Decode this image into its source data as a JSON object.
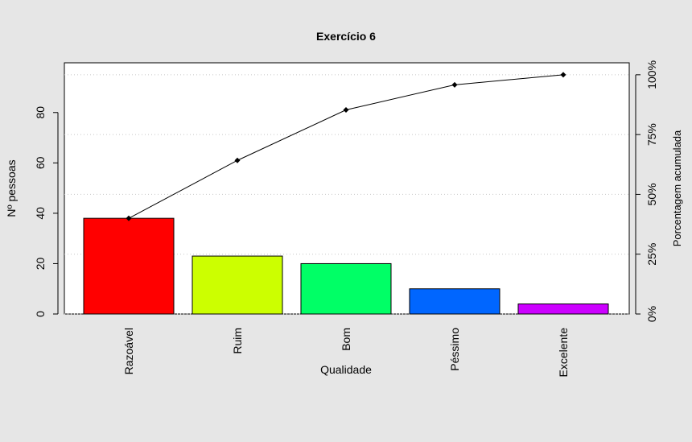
{
  "chart_data": {
    "type": "bar",
    "title": "Exercício 6",
    "xlabel": "Qualidade",
    "ylabel": "Nº pessoas",
    "y2label": "Porcentagem acumulada",
    "categories": [
      "Razoável",
      "Ruim",
      "Bom",
      "Péssimo",
      "Excelente"
    ],
    "values": [
      38,
      23,
      20,
      10,
      4
    ],
    "bar_colors": [
      "#ff0000",
      "#ccff00",
      "#00ff66",
      "#0066ff",
      "#cc00ff"
    ],
    "cumulative_percent": [
      40,
      64.2,
      85.3,
      95.8,
      100
    ],
    "ylim": [
      0,
      99.75
    ],
    "yticks": [
      0,
      20,
      40,
      60,
      80
    ],
    "y2ticks": [
      "0%",
      "25%",
      "50%",
      "75%",
      "100%"
    ],
    "y2tick_values": [
      0,
      25,
      50,
      75,
      100
    ],
    "grid": "dotted horizontal at percentage ticks",
    "legend": "none"
  }
}
